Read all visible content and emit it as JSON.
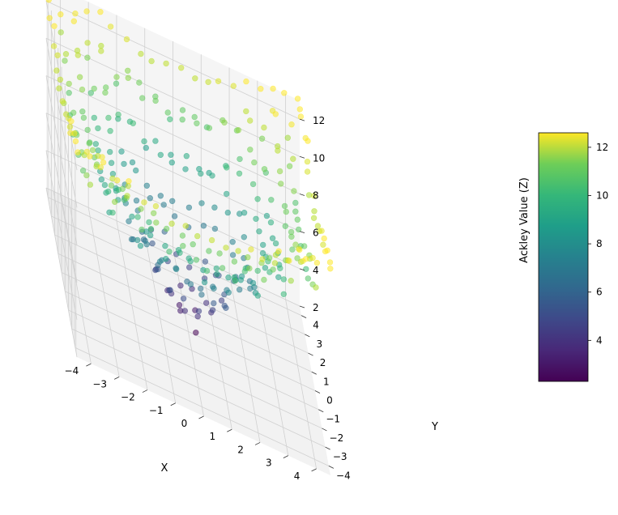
{
  "chart_data": {
    "type": "scatter",
    "subtype": "3d-scatter",
    "function": "Ackley",
    "xlabel": "X",
    "ylabel": "Y",
    "zlabel": "Ackley Value (Z)",
    "xlim": [
      -4.5,
      4.5
    ],
    "ylim": [
      -4.5,
      4.5
    ],
    "zlim": [
      2.0,
      13.0
    ],
    "x_ticks": [
      -4,
      -3,
      -2,
      -1,
      0,
      1,
      2,
      3,
      4
    ],
    "y_ticks": [
      -4,
      -3,
      -2,
      -1,
      0,
      1,
      2,
      3,
      4
    ],
    "z_ticks": [
      2,
      4,
      6,
      8,
      10,
      12
    ],
    "x_tick_labels": [
      "−4",
      "−3",
      "−2",
      "−1",
      "0",
      "1",
      "2",
      "3",
      "4"
    ],
    "y_tick_labels": [
      "−4",
      "−3",
      "−2",
      "−1",
      "0",
      "1",
      "2",
      "3",
      "4"
    ],
    "z_tick_labels": [
      "2",
      "4",
      "6",
      "8",
      "10",
      "12"
    ],
    "colormap": "viridis",
    "colorbar": {
      "min": 2.3,
      "max": 12.6,
      "ticks": [
        4,
        6,
        8,
        10,
        12
      ],
      "tick_labels": [
        "4",
        "6",
        "8",
        "10",
        "12"
      ]
    },
    "grid": true,
    "points": {
      "x_range": [
        -4.5,
        4.5
      ],
      "y_range": [
        -4.5,
        4.5
      ],
      "samples_per_axis": 20,
      "jitter": 0.08,
      "alpha": 0.55,
      "z_definition": "Ackley function values"
    }
  }
}
